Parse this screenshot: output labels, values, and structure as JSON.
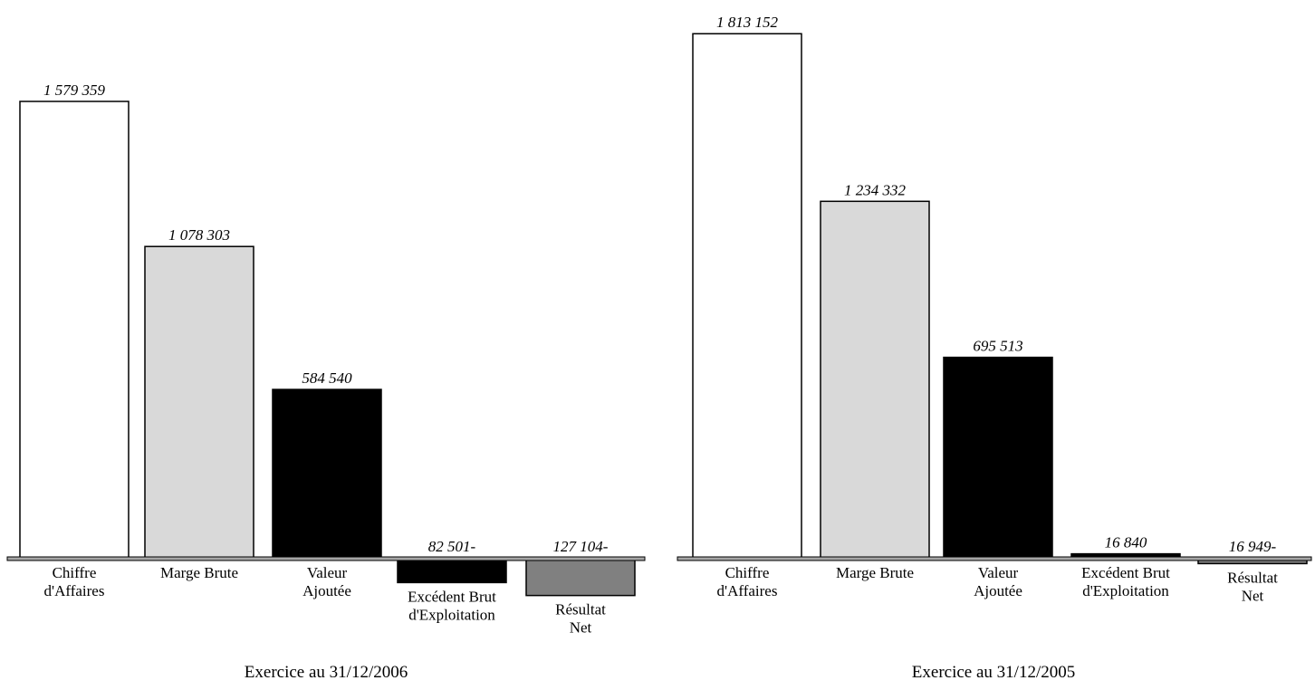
{
  "chart_data": [
    {
      "type": "bar",
      "caption": "Exercice au  31/12/2006",
      "categories": [
        [
          "Chiffre",
          "d'Affaires"
        ],
        [
          "Marge Brute"
        ],
        [
          "Valeur",
          "Ajoutée"
        ],
        [
          "Excédent Brut",
          "d'Exploitation"
        ],
        [
          "Résultat",
          "Net"
        ]
      ],
      "values": [
        1579359,
        1078303,
        584540,
        -82501,
        -127104
      ],
      "value_labels": [
        "1 579 359",
        "1 078 303",
        "584 540",
        "82 501-",
        "127 104-"
      ],
      "colors": [
        "#ffffff",
        "#d9d9d9",
        "#000000",
        "#000000",
        "#808080"
      ]
    },
    {
      "type": "bar",
      "caption": "Exercice au  31/12/2005",
      "categories": [
        [
          "Chiffre",
          "d'Affaires"
        ],
        [
          "Marge Brute"
        ],
        [
          "Valeur",
          "Ajoutée"
        ],
        [
          "Excédent Brut",
          "d'Exploitation"
        ],
        [
          "Résultat",
          "Net"
        ]
      ],
      "values": [
        1813152,
        1234332,
        695513,
        16840,
        -16949
      ],
      "value_labels": [
        "1 813 152",
        "1 234 332",
        "695 513",
        "16 840",
        "16 949-"
      ],
      "colors": [
        "#ffffff",
        "#d9d9d9",
        "#000000",
        "#000000",
        "#808080"
      ]
    }
  ]
}
